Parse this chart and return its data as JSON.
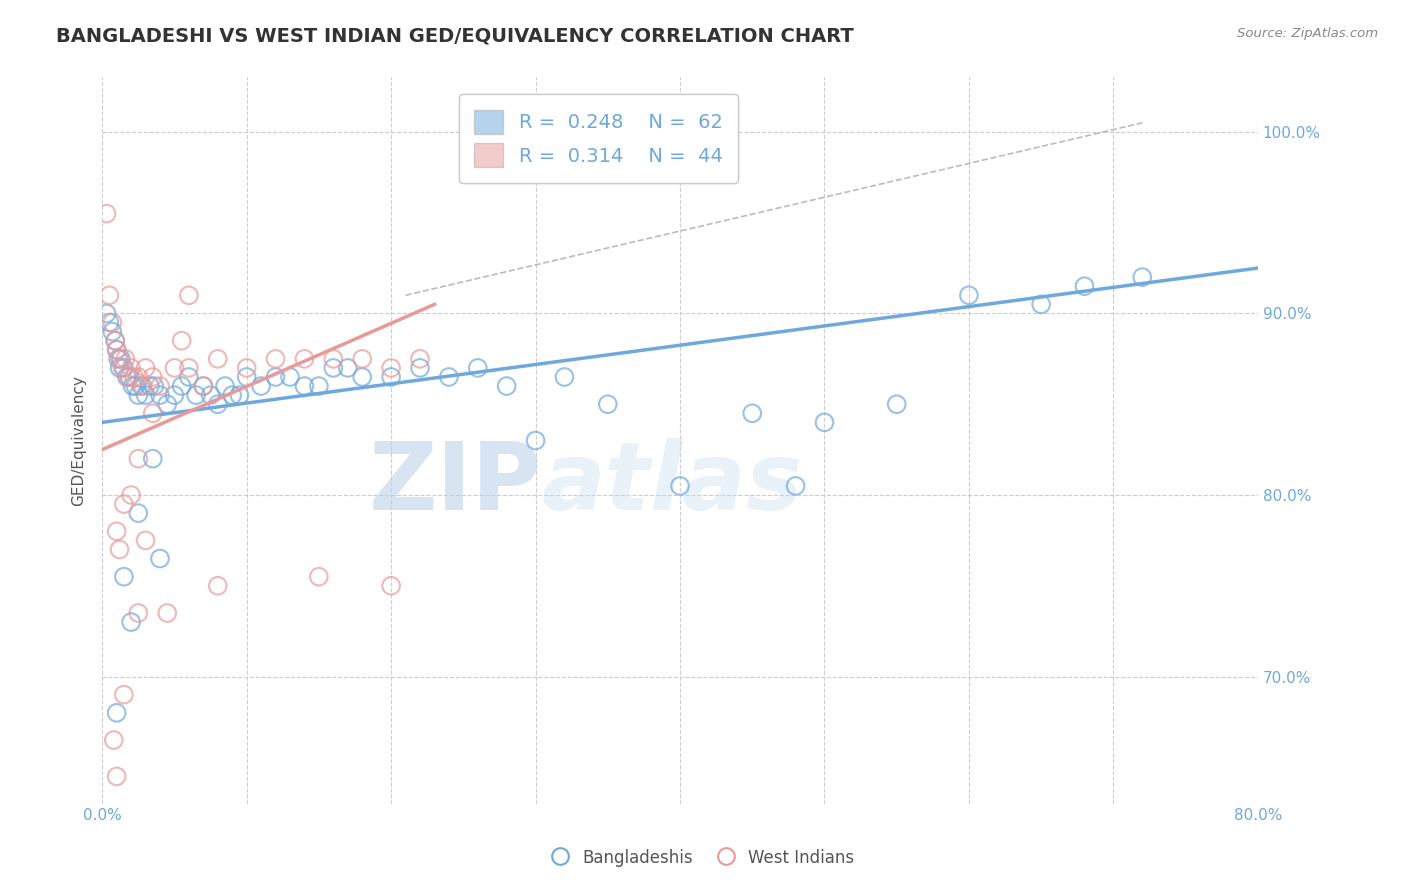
{
  "title": "BANGLADESHI VS WEST INDIAN GED/EQUIVALENCY CORRELATION CHART",
  "source": "Source: ZipAtlas.com",
  "ylabel": "GED/Equivalency",
  "x_tick_labels": [
    "0.0%",
    "",
    "",
    "",
    "",
    "",
    "",
    "",
    "80.0%"
  ],
  "y_tick_labels_right": [
    "100.0%",
    "90.0%",
    "80.0%",
    "70.0%"
  ],
  "xlim": [
    0.0,
    80.0
  ],
  "ylim": [
    63.0,
    103.0
  ],
  "x_ticks": [
    0,
    10,
    20,
    30,
    40,
    50,
    60,
    70,
    80
  ],
  "y_ticks_right": [
    100,
    90,
    80,
    70
  ],
  "y_ticks_grid": [
    70,
    80,
    90,
    100
  ],
  "blue_color": "#6fa8dc",
  "pink_color": "#ea9999",
  "blue_scatter": [
    [
      0.3,
      90.0
    ],
    [
      0.5,
      89.5
    ],
    [
      0.7,
      89.0
    ],
    [
      0.9,
      88.5
    ],
    [
      1.0,
      88.0
    ],
    [
      1.1,
      87.5
    ],
    [
      1.2,
      87.0
    ],
    [
      1.3,
      87.5
    ],
    [
      1.5,
      87.0
    ],
    [
      1.7,
      86.5
    ],
    [
      1.9,
      86.5
    ],
    [
      2.1,
      86.0
    ],
    [
      2.3,
      86.0
    ],
    [
      2.5,
      85.5
    ],
    [
      2.7,
      86.0
    ],
    [
      3.0,
      85.5
    ],
    [
      3.3,
      86.0
    ],
    [
      3.6,
      86.0
    ],
    [
      4.0,
      85.5
    ],
    [
      4.5,
      85.0
    ],
    [
      5.0,
      85.5
    ],
    [
      5.5,
      86.0
    ],
    [
      6.0,
      86.5
    ],
    [
      6.5,
      85.5
    ],
    [
      7.0,
      86.0
    ],
    [
      7.5,
      85.5
    ],
    [
      8.0,
      85.0
    ],
    [
      8.5,
      86.0
    ],
    [
      9.0,
      85.5
    ],
    [
      9.5,
      85.5
    ],
    [
      10.0,
      86.5
    ],
    [
      11.0,
      86.0
    ],
    [
      12.0,
      86.5
    ],
    [
      13.0,
      86.5
    ],
    [
      14.0,
      86.0
    ],
    [
      15.0,
      86.0
    ],
    [
      16.0,
      87.0
    ],
    [
      17.0,
      87.0
    ],
    [
      18.0,
      86.5
    ],
    [
      20.0,
      86.5
    ],
    [
      22.0,
      87.0
    ],
    [
      24.0,
      86.5
    ],
    [
      26.0,
      87.0
    ],
    [
      28.0,
      86.0
    ],
    [
      30.0,
      83.0
    ],
    [
      32.0,
      86.5
    ],
    [
      35.0,
      85.0
    ],
    [
      40.0,
      80.5
    ],
    [
      45.0,
      84.5
    ],
    [
      48.0,
      80.5
    ],
    [
      50.0,
      84.0
    ],
    [
      55.0,
      85.0
    ],
    [
      60.0,
      91.0
    ],
    [
      65.0,
      90.5
    ],
    [
      68.0,
      91.5
    ],
    [
      72.0,
      92.0
    ],
    [
      3.5,
      82.0
    ],
    [
      4.0,
      76.5
    ],
    [
      2.5,
      79.0
    ],
    [
      1.5,
      75.5
    ],
    [
      2.0,
      73.0
    ],
    [
      1.0,
      68.0
    ]
  ],
  "pink_scatter": [
    [
      0.3,
      95.5
    ],
    [
      0.5,
      91.0
    ],
    [
      0.7,
      89.5
    ],
    [
      0.9,
      88.5
    ],
    [
      1.0,
      88.0
    ],
    [
      1.2,
      87.5
    ],
    [
      1.4,
      87.0
    ],
    [
      1.6,
      87.5
    ],
    [
      1.8,
      86.5
    ],
    [
      2.0,
      87.0
    ],
    [
      2.2,
      86.5
    ],
    [
      2.5,
      86.5
    ],
    [
      2.8,
      86.0
    ],
    [
      3.0,
      87.0
    ],
    [
      3.5,
      86.5
    ],
    [
      4.0,
      86.0
    ],
    [
      5.0,
      87.0
    ],
    [
      6.0,
      87.0
    ],
    [
      7.0,
      86.0
    ],
    [
      8.0,
      87.5
    ],
    [
      10.0,
      87.0
    ],
    [
      12.0,
      87.5
    ],
    [
      14.0,
      87.5
    ],
    [
      16.0,
      87.5
    ],
    [
      18.0,
      87.5
    ],
    [
      20.0,
      87.0
    ],
    [
      22.0,
      87.5
    ],
    [
      6.0,
      91.0
    ],
    [
      3.5,
      84.5
    ],
    [
      2.5,
      82.0
    ],
    [
      2.0,
      80.0
    ],
    [
      1.5,
      79.5
    ],
    [
      1.2,
      77.0
    ],
    [
      1.0,
      78.0
    ],
    [
      3.0,
      77.5
    ],
    [
      4.5,
      73.5
    ],
    [
      2.5,
      73.5
    ],
    [
      8.0,
      75.0
    ],
    [
      15.0,
      75.5
    ],
    [
      1.5,
      69.0
    ],
    [
      0.8,
      66.5
    ],
    [
      1.0,
      64.5
    ],
    [
      20.0,
      75.0
    ],
    [
      5.5,
      88.5
    ]
  ],
  "blue_line_x": [
    0,
    80
  ],
  "blue_line_y": [
    84.0,
    92.5
  ],
  "pink_line_x": [
    0,
    23
  ],
  "pink_line_y": [
    82.5,
    90.5
  ],
  "dashed_line_x": [
    21,
    72
  ],
  "dashed_line_y": [
    91.0,
    100.5
  ],
  "legend_blue_label": "Bangladeshis",
  "legend_pink_label": "West Indians",
  "r_blue": "0.248",
  "n_blue": "62",
  "r_pink": "0.314",
  "n_pink": "44",
  "watermark_zip": "ZIP",
  "watermark_atlas": "atlas",
  "title_fontsize": 14,
  "axis_label_fontsize": 11,
  "tick_fontsize": 11,
  "background_color": "#ffffff",
  "grid_color": "#c8c8c8"
}
